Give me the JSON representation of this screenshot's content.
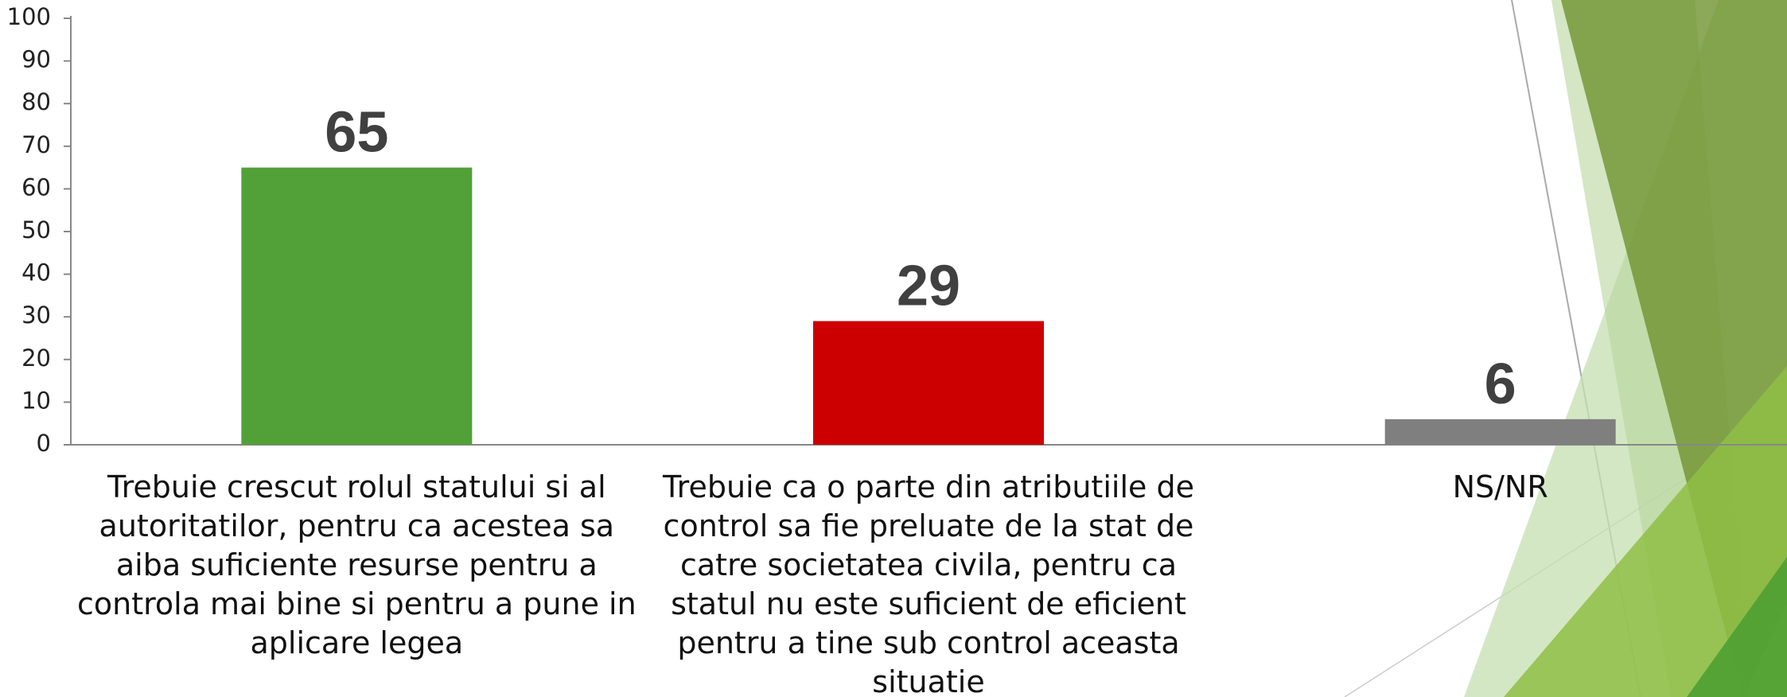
{
  "chart_data": {
    "type": "bar",
    "categories": [
      "Trebuie crescut rolul statului si al autoritatilor, pentru ca acestea sa aiba suficiente resurse pentru a controla mai bine si pentru a pune in aplicare legea",
      "Trebuie ca o parte din atributiile de control sa fie preluate de la stat de catre societatea civila, pentru ca statul nu este suficient de eficient pentru a tine sub control aceasta situatie",
      "NS/NR"
    ],
    "values": [
      65,
      29,
      6
    ],
    "colors": [
      "#52a038",
      "#cc0000",
      "#7f7f7f"
    ],
    "ylim": [
      0,
      100
    ],
    "yticks": [
      0,
      10,
      20,
      30,
      40,
      50,
      60,
      70,
      80,
      90,
      100
    ],
    "grid": false
  }
}
